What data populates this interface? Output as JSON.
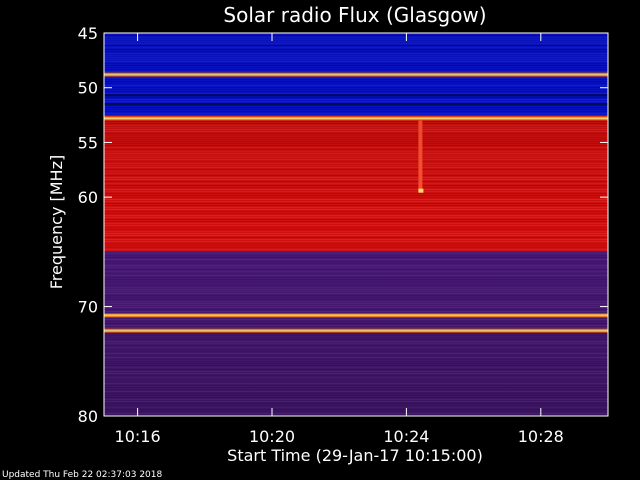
{
  "chart_data": {
    "type": "heatmap",
    "title": "Solar radio Flux (Glasgow)",
    "xlabel": "Start Time (29-Jan-17 10:15:00)",
    "ylabel": "Frequency [MHz]",
    "x_unit": "time",
    "xlim": [
      "10:15:00",
      "10:30:00"
    ],
    "x_ticks": [
      "10:16",
      "10:20",
      "10:24",
      "10:28"
    ],
    "ylim": [
      45,
      80
    ],
    "y_scale": "linear",
    "y_inverted": true,
    "y_ticks": [
      45,
      50,
      55,
      60,
      70,
      80
    ],
    "background_bands": [
      {
        "from": 45,
        "to": 52.5,
        "level": "low"
      },
      {
        "from": 52.5,
        "to": 65,
        "level": "high"
      },
      {
        "from": 65,
        "to": 80,
        "level": "medium"
      }
    ],
    "bright_lines_mhz": [
      48.8,
      52.8,
      70.8,
      72.2
    ],
    "features": [
      {
        "time": "10:24",
        "freq_from": 53,
        "freq_to": 59.5,
        "desc": "vertical streak"
      }
    ],
    "colors": {
      "low": "#0a14d8",
      "medium": "#4a1a78",
      "high": "#d01010",
      "peak": "#ffe070"
    }
  },
  "footer": {
    "updated": "Updated Thu Feb 22 02:37:03 2018"
  }
}
